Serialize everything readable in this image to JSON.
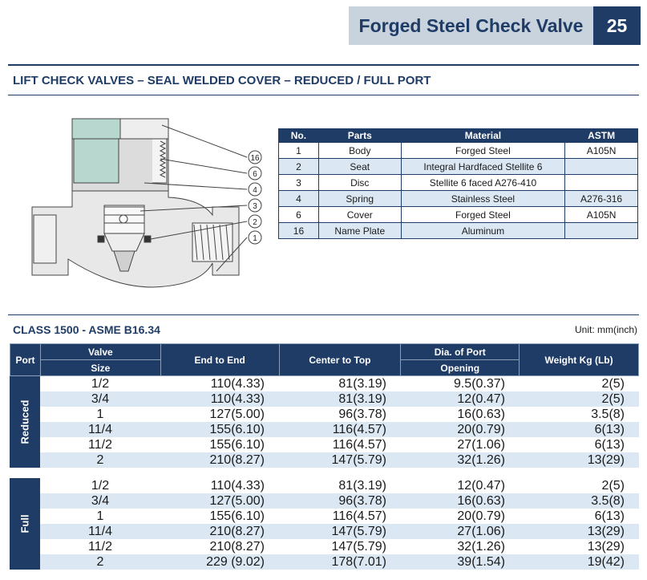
{
  "header": {
    "title": "Forged Steel Check Valve",
    "page_number": "25"
  },
  "section_heading": "LIFT CHECK VALVES – SEAL WELDED COVER – REDUCED / FULL PORT",
  "drawing": {
    "callouts": [
      "16",
      "6",
      "4",
      "3",
      "2",
      "1"
    ]
  },
  "parts_table": {
    "columns": [
      "No.",
      "Parts",
      "Material",
      "ASTM"
    ],
    "rows": [
      {
        "no": "1",
        "part": "Body",
        "material": "Forged Steel",
        "astm": "A105N"
      },
      {
        "no": "2",
        "part": "Seat",
        "material": "Integral Hardfaced Stellite 6",
        "astm": ""
      },
      {
        "no": "3",
        "part": "Disc",
        "material": "Stellite 6 faced A276-410",
        "astm": ""
      },
      {
        "no": "4",
        "part": "Spring",
        "material": "Stainless Steel",
        "astm": "A276-316"
      },
      {
        "no": "6",
        "part": "Cover",
        "material": "Forged Steel",
        "astm": "A105N"
      },
      {
        "no": "16",
        "part": "Name Plate",
        "material": "Aluminum",
        "astm": ""
      }
    ]
  },
  "class_heading": "CLASS 1500 - ASME B16.34",
  "unit_note": "Unit: mm(inch)",
  "dims_table": {
    "headers": {
      "port": "Port",
      "valve": "Valve",
      "size": "Size",
      "end_to_end": "End to End",
      "center_to_top": "Center to Top",
      "dia": "Dia. of Port",
      "opening": "Opening",
      "weight": "Weight Kg (Lb)"
    },
    "groups": [
      {
        "port": "Reduced",
        "rows": [
          {
            "size": "1/2",
            "end_to_end": "110(4.33)",
            "center_to_top": "81(3.19)",
            "dia": "9.5(0.37)",
            "weight": "2(5)"
          },
          {
            "size": "3/4",
            "end_to_end": "110(4.33)",
            "center_to_top": "81(3.19)",
            "dia": "12(0.47)",
            "weight": "2(5)"
          },
          {
            "size": "1",
            "end_to_end": "127(5.00)",
            "center_to_top": "96(3.78)",
            "dia": "16(0.63)",
            "weight": "3.5(8)"
          },
          {
            "size": "11/4",
            "end_to_end": "155(6.10)",
            "center_to_top": "116(4.57)",
            "dia": "20(0.79)",
            "weight": "6(13)"
          },
          {
            "size": "11/2",
            "end_to_end": "155(6.10)",
            "center_to_top": "116(4.57)",
            "dia": "27(1.06)",
            "weight": "6(13)"
          },
          {
            "size": "2",
            "end_to_end": "210(8.27)",
            "center_to_top": "147(5.79)",
            "dia": "32(1.26)",
            "weight": "13(29)"
          }
        ]
      },
      {
        "port": "Full",
        "rows": [
          {
            "size": "1/2",
            "end_to_end": "110(4.33)",
            "center_to_top": "81(3.19)",
            "dia": "12(0.47)",
            "weight": "2(5)"
          },
          {
            "size": "3/4",
            "end_to_end": "127(5.00)",
            "center_to_top": "96(3.78)",
            "dia": "16(0.63)",
            "weight": "3.5(8)"
          },
          {
            "size": "1",
            "end_to_end": "155(6.10)",
            "center_to_top": "116(4.57)",
            "dia": "20(0.79)",
            "weight": "6(13)"
          },
          {
            "size": "11/4",
            "end_to_end": "210(8.27)",
            "center_to_top": "147(5.79)",
            "dia": "27(1.06)",
            "weight": "13(29)"
          },
          {
            "size": "11/2",
            "end_to_end": "210(8.27)",
            "center_to_top": "147(5.79)",
            "dia": "32(1.26)",
            "weight": "13(29)"
          },
          {
            "size": "2",
            "end_to_end": "229 (9.02)",
            "center_to_top": "178(7.01)",
            "dia": "39(1.54)",
            "weight": "19(42)"
          }
        ]
      }
    ]
  },
  "colors": {
    "navy": "#1f3c66",
    "header_band": "#c9d3dd",
    "row_tint": "#dbe8f4"
  }
}
